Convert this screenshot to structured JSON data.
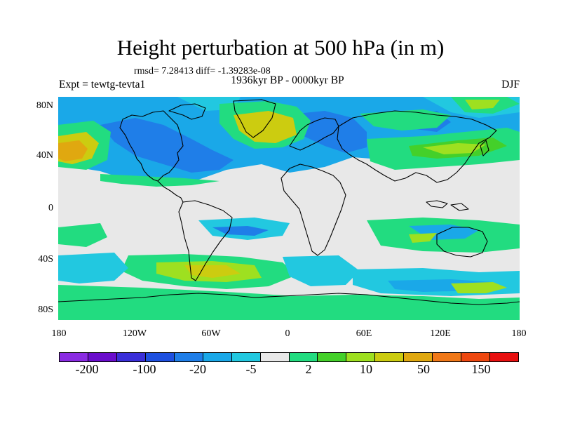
{
  "title": "Height perturbation at 500 hPa (in m)",
  "stats": "rmsd= 7.28413 diff= -1.39283e-08",
  "subtitle": "1936kyr BP - 0000kyr BP",
  "experiment": "Expt = tewtg-tevta1",
  "season": "DJF",
  "axes": {
    "lat_labels": [
      "80N",
      "40N",
      "0",
      "40S",
      "80S"
    ],
    "lon_labels": [
      "180",
      "120W",
      "60W",
      "0",
      "60E",
      "120E",
      "180"
    ]
  },
  "colorbar": {
    "colors": [
      "#8a2be2",
      "#6a0dcc",
      "#3a2fd8",
      "#1e50e0",
      "#1f7ee8",
      "#1aa8e8",
      "#22c8e0",
      "#e8e8e8",
      "#22dc80",
      "#44d02a",
      "#9ee020",
      "#cccc10",
      "#e0a810",
      "#f07818",
      "#ee4810",
      "#e81010"
    ],
    "labels": [
      "-200",
      "-100",
      "-20",
      "-5",
      "2",
      "10",
      "50",
      "150"
    ]
  },
  "field_colors": {
    "neutral": "#e8e8e8",
    "blue_deep": "#1f7ee8",
    "blue_light": "#22c8e0",
    "teal": "#1aa8e8",
    "green": "#22dc80",
    "green_mid": "#44d02a",
    "yellow_green": "#9ee020",
    "olive": "#cccc10",
    "orange": "#e0a810"
  }
}
